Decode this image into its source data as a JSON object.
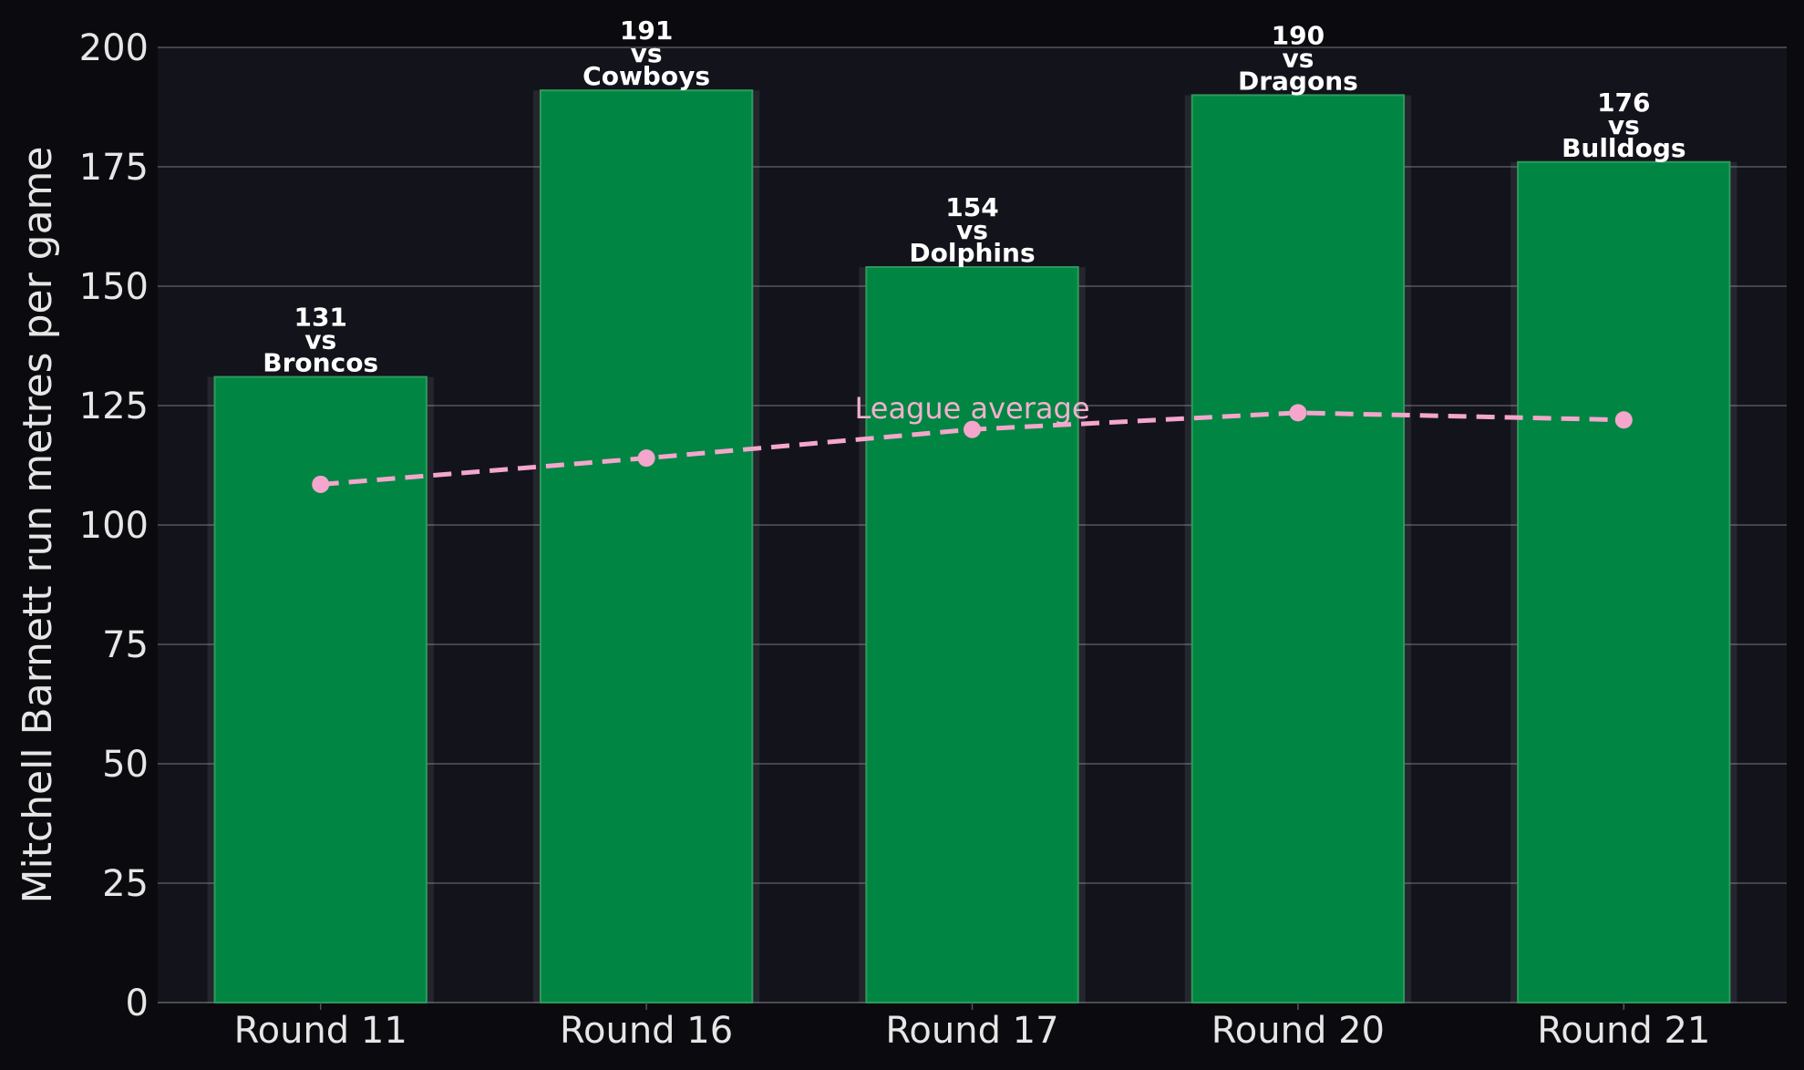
{
  "chart_data": {
    "type": "bar",
    "categories": [
      "Round 11",
      "Round 16",
      "Round 17",
      "Round 20",
      "Round 21"
    ],
    "series": [
      {
        "values": [
          131,
          191,
          154,
          190,
          176
        ],
        "color": "#008542",
        "data_labels": [
          [
            "131",
            "vs",
            "Broncos"
          ],
          [
            "191",
            "vs",
            "Cowboys"
          ],
          [
            "154",
            "vs",
            "Dolphins"
          ],
          [
            "190",
            "vs",
            "Dragons"
          ],
          [
            "176",
            "vs",
            "Bulldogs"
          ]
        ]
      },
      {
        "name": "League average",
        "type": "line",
        "style": "dashed",
        "values": [
          108.5,
          114,
          120,
          123.5,
          122
        ],
        "color": "#f4a6cc"
      }
    ],
    "annotations": [
      {
        "text": "League average",
        "category": "Round 17",
        "y": 121
      }
    ],
    "ylabel": "Mitchell Barnett run metres per game",
    "xlabel": "",
    "ylim": [
      0,
      200
    ],
    "yticks": [
      0,
      25,
      50,
      75,
      100,
      125,
      150,
      175,
      200
    ],
    "grid": "horizontal",
    "colors": {
      "background": "#0b0b0f",
      "plot_background": "#13131c",
      "grid": "#55555c",
      "bar": "#008542",
      "bar_edge": "#2e9a5e",
      "line": "#f4a6cc",
      "text": "#e6e6e6"
    }
  }
}
